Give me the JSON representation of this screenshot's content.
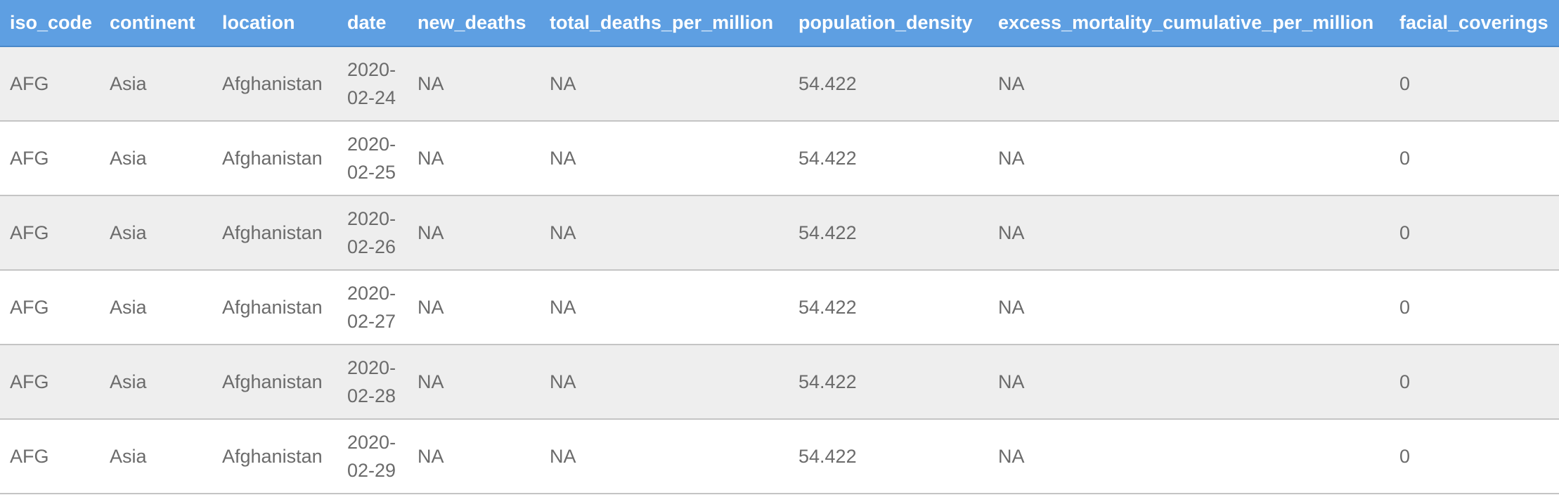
{
  "table": {
    "columns": [
      "iso_code",
      "continent",
      "location",
      "date",
      "new_deaths",
      "total_deaths_per_million",
      "population_density",
      "excess_mortality_cumulative_per_million",
      "facial_coverings"
    ],
    "rows": [
      {
        "iso_code": "AFG",
        "continent": "Asia",
        "location": "Afghanistan",
        "date_part1": "2020-",
        "date_part2": "02-24",
        "new_deaths": "NA",
        "total_deaths_per_million": "NA",
        "population_density": "54.422",
        "excess_mortality_cumulative_per_million": "NA",
        "facial_coverings": "0"
      },
      {
        "iso_code": "AFG",
        "continent": "Asia",
        "location": "Afghanistan",
        "date_part1": "2020-",
        "date_part2": "02-25",
        "new_deaths": "NA",
        "total_deaths_per_million": "NA",
        "population_density": "54.422",
        "excess_mortality_cumulative_per_million": "NA",
        "facial_coverings": "0"
      },
      {
        "iso_code": "AFG",
        "continent": "Asia",
        "location": "Afghanistan",
        "date_part1": "2020-",
        "date_part2": "02-26",
        "new_deaths": "NA",
        "total_deaths_per_million": "NA",
        "population_density": "54.422",
        "excess_mortality_cumulative_per_million": "NA",
        "facial_coverings": "0"
      },
      {
        "iso_code": "AFG",
        "continent": "Asia",
        "location": "Afghanistan",
        "date_part1": "2020-",
        "date_part2": "02-27",
        "new_deaths": "NA",
        "total_deaths_per_million": "NA",
        "population_density": "54.422",
        "excess_mortality_cumulative_per_million": "NA",
        "facial_coverings": "0"
      },
      {
        "iso_code": "AFG",
        "continent": "Asia",
        "location": "Afghanistan",
        "date_part1": "2020-",
        "date_part2": "02-28",
        "new_deaths": "NA",
        "total_deaths_per_million": "NA",
        "population_density": "54.422",
        "excess_mortality_cumulative_per_million": "NA",
        "facial_coverings": "0"
      },
      {
        "iso_code": "AFG",
        "continent": "Asia",
        "location": "Afghanistan",
        "date_part1": "2020-",
        "date_part2": "02-29",
        "new_deaths": "NA",
        "total_deaths_per_million": "NA",
        "population_density": "54.422",
        "excess_mortality_cumulative_per_million": "NA",
        "facial_coverings": "0"
      }
    ]
  },
  "colors": {
    "header_bg": "#5e9fe2",
    "header_text": "#ffffff",
    "row_odd_bg": "#eeeeee",
    "row_even_bg": "#ffffff",
    "cell_text": "#6b6b6b"
  }
}
